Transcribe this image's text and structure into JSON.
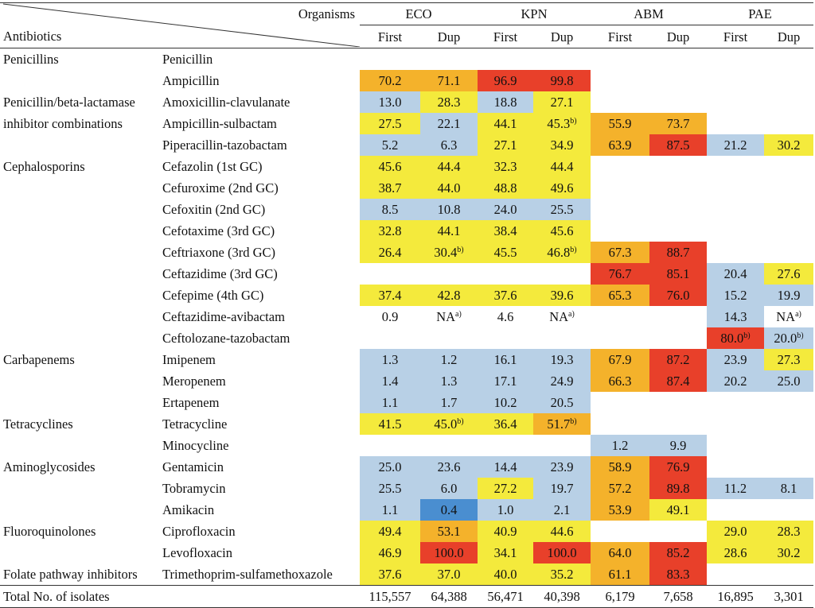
{
  "header": {
    "organisms_label": "Organisms",
    "antibiotics_label": "Antibiotics",
    "orgs": [
      "ECO",
      "KPN",
      "ABM",
      "PAE"
    ],
    "first": "First",
    "dup": "Dup"
  },
  "colors": {
    "yellow": "#f4ea3c",
    "orange": "#f4b22b",
    "red": "#e8402a",
    "light_blue": "#b8d0e6",
    "blue": "#4a8ed0"
  },
  "rows": [
    {
      "class": "Penicillins",
      "drug": "Penicillin",
      "cells": [
        [
          "",
          ""
        ],
        [
          "",
          ""
        ],
        [
          "",
          ""
        ],
        [
          "",
          ""
        ],
        [
          "",
          ""
        ],
        [
          "",
          ""
        ],
        [
          "",
          ""
        ],
        [
          "",
          ""
        ]
      ]
    },
    {
      "class": "",
      "drug": "Ampicillin",
      "cells": [
        [
          "70.2",
          "o"
        ],
        [
          "71.1",
          "o"
        ],
        [
          "96.9",
          "r"
        ],
        [
          "99.8",
          "r"
        ],
        [
          "",
          ""
        ],
        [
          "",
          ""
        ],
        [
          "",
          ""
        ],
        [
          "",
          ""
        ]
      ]
    },
    {
      "class": "Penicillin/beta-lactamase",
      "drug": "Amoxicillin-clavulanate",
      "cells": [
        [
          "13.0",
          "b"
        ],
        [
          "28.3",
          "y"
        ],
        [
          "18.8",
          "b"
        ],
        [
          "27.1",
          "y"
        ],
        [
          "",
          ""
        ],
        [
          "",
          ""
        ],
        [
          "",
          ""
        ],
        [
          "",
          ""
        ]
      ]
    },
    {
      "class": "inhibitor combinations",
      "drug": "Ampicillin-sulbactam",
      "cells": [
        [
          "27.5",
          "y"
        ],
        [
          "22.1",
          "b"
        ],
        [
          "44.1",
          "y"
        ],
        [
          "45.3",
          "y",
          "b)"
        ],
        [
          "55.9",
          "o"
        ],
        [
          "73.7",
          "o"
        ],
        [
          "",
          ""
        ],
        [
          "",
          ""
        ]
      ]
    },
    {
      "class": "",
      "drug": "Piperacillin-tazobactam",
      "cells": [
        [
          "5.2",
          "b"
        ],
        [
          "6.3",
          "b"
        ],
        [
          "27.1",
          "y"
        ],
        [
          "34.9",
          "y"
        ],
        [
          "63.9",
          "o"
        ],
        [
          "87.5",
          "r"
        ],
        [
          "21.2",
          "b"
        ],
        [
          "30.2",
          "y"
        ]
      ]
    },
    {
      "class": "Cephalosporins",
      "drug": "Cefazolin (1st GC)",
      "cells": [
        [
          "45.6",
          "y"
        ],
        [
          "44.4",
          "y"
        ],
        [
          "32.3",
          "y"
        ],
        [
          "44.4",
          "y"
        ],
        [
          "",
          ""
        ],
        [
          "",
          ""
        ],
        [
          "",
          ""
        ],
        [
          "",
          ""
        ]
      ]
    },
    {
      "class": "",
      "drug": "Cefuroxime (2nd GC)",
      "cells": [
        [
          "38.7",
          "y"
        ],
        [
          "44.0",
          "y"
        ],
        [
          "48.8",
          "y"
        ],
        [
          "49.6",
          "y"
        ],
        [
          "",
          ""
        ],
        [
          "",
          ""
        ],
        [
          "",
          ""
        ],
        [
          "",
          ""
        ]
      ]
    },
    {
      "class": "",
      "drug": "Cefoxitin (2nd GC)",
      "cells": [
        [
          "8.5",
          "b"
        ],
        [
          "10.8",
          "b"
        ],
        [
          "24.0",
          "b"
        ],
        [
          "25.5",
          "b"
        ],
        [
          "",
          ""
        ],
        [
          "",
          ""
        ],
        [
          "",
          ""
        ],
        [
          "",
          ""
        ]
      ]
    },
    {
      "class": "",
      "drug": "Cefotaxime (3rd GC)",
      "cells": [
        [
          "32.8",
          "y"
        ],
        [
          "44.1",
          "y"
        ],
        [
          "38.4",
          "y"
        ],
        [
          "45.6",
          "y"
        ],
        [
          "",
          ""
        ],
        [
          "",
          ""
        ],
        [
          "",
          ""
        ],
        [
          "",
          ""
        ]
      ]
    },
    {
      "class": "",
      "drug": "Ceftriaxone (3rd GC)",
      "cells": [
        [
          "26.4",
          "y"
        ],
        [
          "30.4",
          "y",
          "b)"
        ],
        [
          "45.5",
          "y"
        ],
        [
          "46.8",
          "y",
          "b)"
        ],
        [
          "67.3",
          "o"
        ],
        [
          "88.7",
          "r"
        ],
        [
          "",
          ""
        ],
        [
          "",
          ""
        ]
      ]
    },
    {
      "class": "",
      "drug": "Ceftazidime (3rd GC)",
      "cells": [
        [
          "",
          ""
        ],
        [
          "",
          ""
        ],
        [
          "",
          ""
        ],
        [
          "",
          ""
        ],
        [
          "76.7",
          "r"
        ],
        [
          "85.1",
          "r"
        ],
        [
          "20.4",
          "b"
        ],
        [
          "27.6",
          "y"
        ]
      ]
    },
    {
      "class": "",
      "drug": "Cefepime (4th GC)",
      "cells": [
        [
          "37.4",
          "y"
        ],
        [
          "42.8",
          "y"
        ],
        [
          "37.6",
          "y"
        ],
        [
          "39.6",
          "y"
        ],
        [
          "65.3",
          "o"
        ],
        [
          "76.0",
          "r"
        ],
        [
          "15.2",
          "b"
        ],
        [
          "19.9",
          "b"
        ]
      ]
    },
    {
      "class": "",
      "drug": "Ceftazidime-avibactam",
      "cells": [
        [
          "0.9",
          ""
        ],
        [
          "NA",
          "",
          "a)"
        ],
        [
          "4.6",
          ""
        ],
        [
          "NA",
          "",
          "a)"
        ],
        [
          "",
          ""
        ],
        [
          "",
          ""
        ],
        [
          "14.3",
          "b"
        ],
        [
          "NA",
          "",
          "a)"
        ]
      ]
    },
    {
      "class": "",
      "drug": "Ceftolozane-tazobactam",
      "cells": [
        [
          "",
          ""
        ],
        [
          "",
          ""
        ],
        [
          "",
          ""
        ],
        [
          "",
          ""
        ],
        [
          "",
          ""
        ],
        [
          "",
          ""
        ],
        [
          "80.0",
          "r",
          "b)"
        ],
        [
          "20.0",
          "b",
          "b)"
        ]
      ]
    },
    {
      "class": "Carbapenems",
      "drug": "Imipenem",
      "cells": [
        [
          "1.3",
          "b"
        ],
        [
          "1.2",
          "b"
        ],
        [
          "16.1",
          "b"
        ],
        [
          "19.3",
          "b"
        ],
        [
          "67.9",
          "o"
        ],
        [
          "87.2",
          "r"
        ],
        [
          "23.9",
          "b"
        ],
        [
          "27.3",
          "y"
        ]
      ]
    },
    {
      "class": "",
      "drug": "Meropenem",
      "cells": [
        [
          "1.4",
          "b"
        ],
        [
          "1.3",
          "b"
        ],
        [
          "17.1",
          "b"
        ],
        [
          "24.9",
          "b"
        ],
        [
          "66.3",
          "o"
        ],
        [
          "87.4",
          "r"
        ],
        [
          "20.2",
          "b"
        ],
        [
          "25.0",
          "b"
        ]
      ]
    },
    {
      "class": "",
      "drug": "Ertapenem",
      "cells": [
        [
          "1.1",
          "b"
        ],
        [
          "1.7",
          "b"
        ],
        [
          "10.2",
          "b"
        ],
        [
          "20.5",
          "b"
        ],
        [
          "",
          ""
        ],
        [
          "",
          ""
        ],
        [
          "",
          ""
        ],
        [
          "",
          ""
        ]
      ]
    },
    {
      "class": "Tetracyclines",
      "drug": "Tetracycline",
      "cells": [
        [
          "41.5",
          "y"
        ],
        [
          "45.0",
          "y",
          "b)"
        ],
        [
          "36.4",
          "y"
        ],
        [
          "51.7",
          "o",
          "b)"
        ],
        [
          "",
          ""
        ],
        [
          "",
          ""
        ],
        [
          "",
          ""
        ],
        [
          "",
          ""
        ]
      ]
    },
    {
      "class": "",
      "drug": "Minocycline",
      "cells": [
        [
          "",
          ""
        ],
        [
          "",
          ""
        ],
        [
          "",
          ""
        ],
        [
          "",
          ""
        ],
        [
          "1.2",
          "b"
        ],
        [
          "9.9",
          "b"
        ],
        [
          "",
          ""
        ],
        [
          "",
          ""
        ]
      ]
    },
    {
      "class": "Aminoglycosides",
      "drug": "Gentamicin",
      "cells": [
        [
          "25.0",
          "b"
        ],
        [
          "23.6",
          "b"
        ],
        [
          "14.4",
          "b"
        ],
        [
          "23.9",
          "b"
        ],
        [
          "58.9",
          "o"
        ],
        [
          "76.9",
          "r"
        ],
        [
          "",
          ""
        ],
        [
          "",
          ""
        ]
      ]
    },
    {
      "class": "",
      "drug": "Tobramycin",
      "cells": [
        [
          "25.5",
          "b"
        ],
        [
          "6.0",
          "b"
        ],
        [
          "27.2",
          "y"
        ],
        [
          "19.7",
          "b"
        ],
        [
          "57.2",
          "o"
        ],
        [
          "89.8",
          "r"
        ],
        [
          "11.2",
          "b"
        ],
        [
          "8.1",
          "b"
        ]
      ]
    },
    {
      "class": "",
      "drug": "Amikacin",
      "cells": [
        [
          "1.1",
          "b"
        ],
        [
          "0.4",
          "d"
        ],
        [
          "1.0",
          "b"
        ],
        [
          "2.1",
          "b"
        ],
        [
          "53.9",
          "o"
        ],
        [
          "49.1",
          "y"
        ],
        [
          "",
          ""
        ],
        [
          "",
          ""
        ]
      ]
    },
    {
      "class": "Fluoroquinolones",
      "drug": "Ciprofloxacin",
      "cells": [
        [
          "49.4",
          "y"
        ],
        [
          "53.1",
          "o"
        ],
        [
          "40.9",
          "y"
        ],
        [
          "44.6",
          "y"
        ],
        [
          "",
          ""
        ],
        [
          "",
          ""
        ],
        [
          "29.0",
          "y"
        ],
        [
          "28.3",
          "y"
        ]
      ]
    },
    {
      "class": "",
      "drug": "Levofloxacin",
      "cells": [
        [
          "46.9",
          "y"
        ],
        [
          "100.0",
          "r"
        ],
        [
          "34.1",
          "y"
        ],
        [
          "100.0",
          "r"
        ],
        [
          "64.0",
          "o"
        ],
        [
          "85.2",
          "r"
        ],
        [
          "28.6",
          "y"
        ],
        [
          "30.2",
          "y"
        ]
      ]
    },
    {
      "class": "Folate pathway inhibitors",
      "drug": "Trimethoprim-sulfamethoxazole",
      "cells": [
        [
          "37.6",
          "y"
        ],
        [
          "37.0",
          "y"
        ],
        [
          "40.0",
          "y"
        ],
        [
          "35.2",
          "y"
        ],
        [
          "61.1",
          "o"
        ],
        [
          "83.3",
          "r"
        ],
        [
          "",
          ""
        ],
        [
          "",
          ""
        ]
      ]
    }
  ],
  "total": {
    "label": "Total No. of isolates",
    "values": [
      "115,557",
      "64,388",
      "56,471",
      "40,398",
      "6,179",
      "7,658",
      "16,895",
      "3,301"
    ]
  }
}
